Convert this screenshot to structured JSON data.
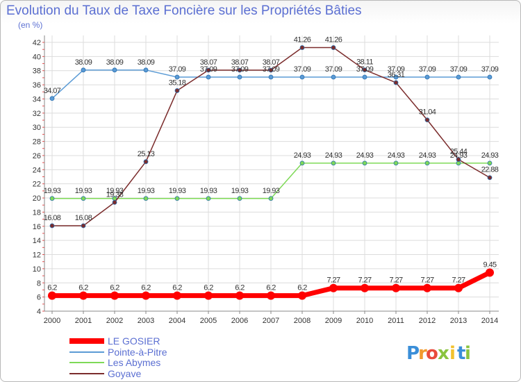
{
  "chart_data": {
    "type": "line",
    "title": "Evolution du Taux de Taxe Foncière sur les Propriétés Bâties",
    "ylabel": "(en %)",
    "xlabel": "",
    "categories": [
      "2000",
      "2001",
      "2002",
      "2003",
      "2004",
      "2005",
      "2006",
      "2007",
      "2008",
      "2009",
      "2010",
      "2011",
      "2012",
      "2013",
      "2014"
    ],
    "ylim": [
      4,
      42
    ],
    "yticks": [
      4,
      6,
      8,
      10,
      12,
      14,
      16,
      18,
      20,
      22,
      24,
      26,
      28,
      30,
      32,
      34,
      36,
      38,
      40,
      42
    ],
    "grid": true,
    "legend_position": "bottom-left",
    "series": [
      {
        "name": "LE GOSIER",
        "color": "#ff0000",
        "values": [
          6.2,
          6.2,
          6.2,
          6.2,
          6.2,
          6.2,
          6.2,
          6.2,
          6.2,
          7.27,
          7.27,
          7.27,
          7.27,
          7.27,
          9.45
        ],
        "labels": [
          "6.2",
          "6.2",
          "6.2",
          "6.2",
          "6.2",
          "6.2",
          "6.2",
          "6.2",
          "6.2",
          "7.27",
          "7.27",
          "7.27",
          "7.27",
          "7.27",
          "9.45"
        ]
      },
      {
        "name": "Pointe-à-Pitre",
        "color": "#5b9bd5",
        "values": [
          34.07,
          38.09,
          38.09,
          38.09,
          37.09,
          37.09,
          37.09,
          37.09,
          37.09,
          37.09,
          37.09,
          37.09,
          37.09,
          37.09,
          37.09
        ],
        "labels": [
          "34.07",
          "38.09",
          "38.09",
          "38.09",
          "37.09",
          "37.09",
          "37.09",
          "37.09",
          "37.09",
          "37.09",
          "37.09",
          "37.09",
          "37.09",
          "37.09",
          "37.09"
        ]
      },
      {
        "name": "Les Abymes",
        "color": "#7ed957",
        "values": [
          19.93,
          19.93,
          19.93,
          19.93,
          19.93,
          19.93,
          19.93,
          19.93,
          24.93,
          24.93,
          24.93,
          24.93,
          24.93,
          24.93,
          24.93
        ],
        "labels": [
          "19.93",
          "19.93",
          "19.93",
          "19.93",
          "19.93",
          "19.93",
          "19.93",
          "19.93",
          "24.93",
          "24.93",
          "24.93",
          "24.93",
          "24.93",
          "24.93",
          "24.93"
        ]
      },
      {
        "name": "Goyave",
        "color": "#7b2c2c",
        "values": [
          16.08,
          16.08,
          19.38,
          25.13,
          35.18,
          38.07,
          38.07,
          38.07,
          41.26,
          41.26,
          38.11,
          36.31,
          31.04,
          25.44,
          22.88
        ],
        "labels": [
          "16.08",
          "16.08",
          "19.38",
          "25.13",
          "35.18",
          "38.07",
          "38.07",
          "38.07",
          "41.26",
          "41.26",
          "38.11",
          "36.31",
          "31.04",
          "25.44",
          "22.88"
        ]
      }
    ]
  },
  "brand": {
    "letters": [
      "P",
      "r",
      "o",
      "x",
      "i",
      "t",
      "i"
    ],
    "colors": [
      "#3a8ed8",
      "#f29a2e",
      "#e94b3c",
      "#8ac43f",
      "#f2c12e",
      "#3a8ed8",
      "#8ac43f"
    ]
  }
}
